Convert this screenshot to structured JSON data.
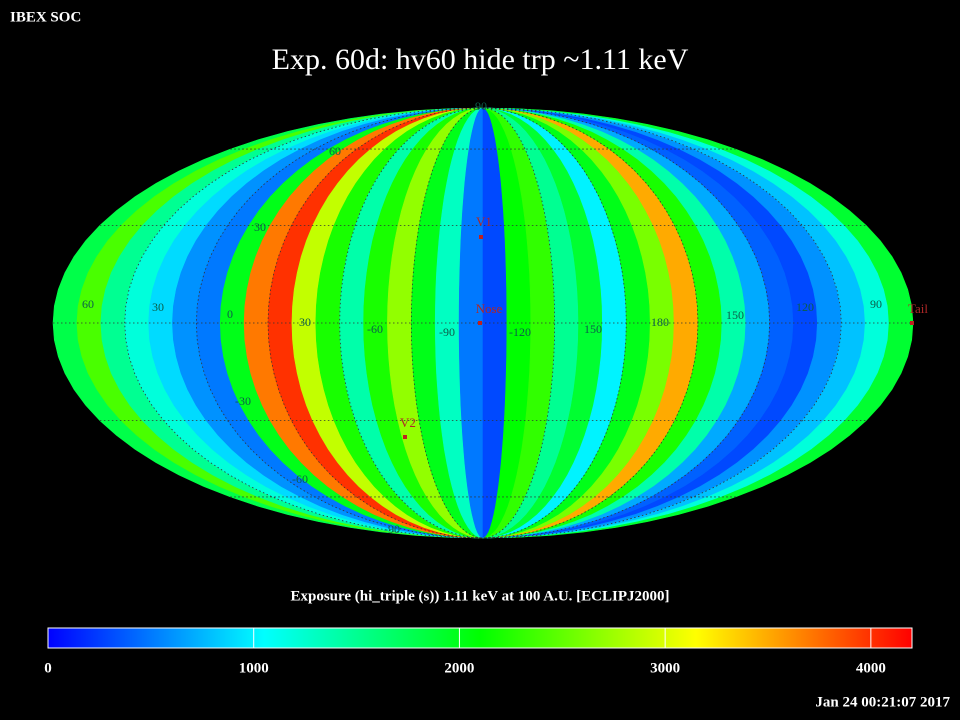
{
  "header": {
    "org": "IBEX SOC",
    "title": "Exp.   60d: hv60 hide trp ~1.11 keV",
    "timestamp": "Jan 24 00:21:07 2017"
  },
  "map_data": {
    "type": "mollweide-heatmap",
    "strips": [
      1800,
      2400,
      1500,
      1200,
      900,
      600,
      500,
      2000,
      3700,
      4000,
      2900,
      2200,
      1400,
      2200,
      2700,
      2000,
      1300,
      500,
      300,
      2100,
      2300,
      1500,
      1900,
      1000,
      2000,
      2600,
      3500,
      2200,
      1400,
      700,
      400,
      300,
      600,
      800,
      1200,
      1900
    ],
    "grid_labels": [
      "60",
      "30",
      "0",
      "30",
      "-60",
      "-90",
      "-120",
      "150",
      "180",
      "150",
      "120",
      "90",
      "90",
      "60",
      "30",
      "-30",
      "-60",
      "-90"
    ],
    "markers": [
      "V1",
      "Nose",
      "V2",
      "Tail"
    ]
  },
  "colorbar": {
    "label": "Exposure (hi_triple (s))  1.11 keV at 100 A.U. [ECLIPJ2000]",
    "clim": [
      0,
      4200
    ],
    "ticks": [
      0,
      1000,
      2000,
      3000,
      4000
    ]
  }
}
